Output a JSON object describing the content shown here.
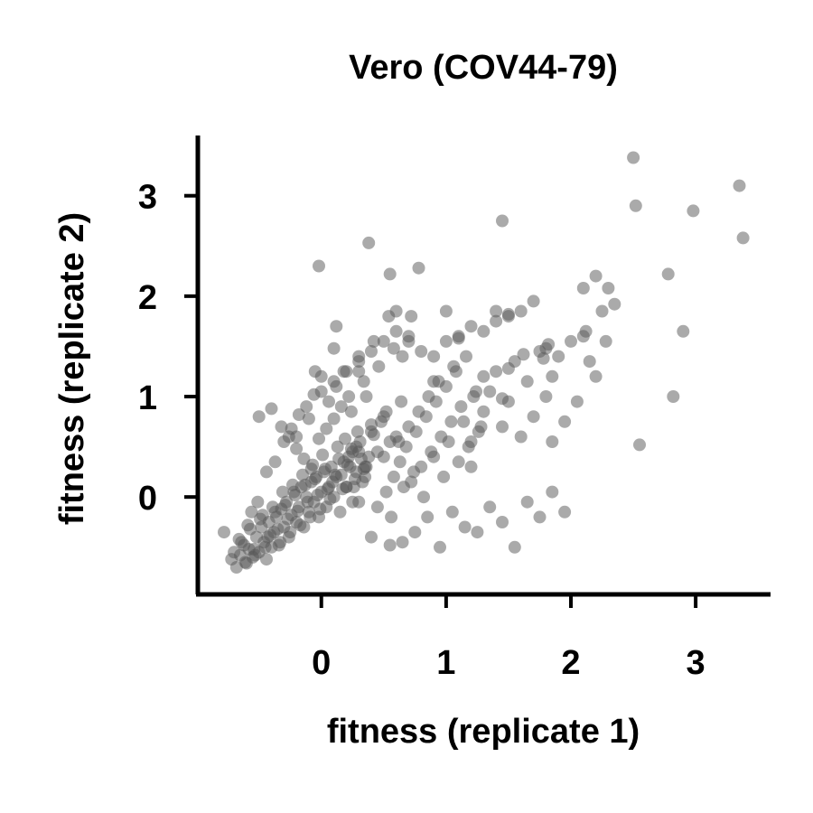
{
  "chart_data": {
    "type": "scatter",
    "title": "Vero (COV44-79)",
    "xlabel": "fitness (replicate 1)",
    "ylabel": "fitness (replicate 2)",
    "xlim": [
      -0.99,
      3.6
    ],
    "ylim": [
      -0.97,
      3.6
    ],
    "xticks": [
      0,
      1,
      2,
      3
    ],
    "yticks": [
      0,
      1,
      2,
      3
    ],
    "grid": false,
    "point_color": "#555555",
    "point_opacity": 0.5,
    "series": [
      {
        "x": [
          -0.78,
          -0.72,
          -0.68,
          -0.65,
          -0.62,
          -0.6,
          -0.58,
          -0.55,
          -0.52,
          -0.5,
          -0.48,
          -0.46,
          -0.44,
          -0.42,
          -0.4,
          -0.38,
          -0.36,
          -0.34,
          -0.32,
          -0.3,
          -0.28,
          -0.26,
          -0.24,
          -0.22,
          -0.2,
          -0.18,
          -0.16,
          -0.14,
          -0.12,
          -0.1,
          -0.08,
          -0.06,
          -0.04,
          -0.02,
          0.0,
          0.02,
          0.04,
          0.06,
          0.08,
          0.1,
          0.12,
          0.15,
          0.18,
          0.2,
          0.22,
          0.25,
          0.28,
          0.3,
          0.33,
          0.36,
          -0.7,
          -0.66,
          -0.61,
          -0.57,
          -0.53,
          -0.49,
          -0.45,
          -0.41,
          -0.37,
          -0.33,
          -0.29,
          -0.25,
          -0.21,
          -0.17,
          -0.13,
          -0.09,
          -0.05,
          -0.01,
          0.03,
          0.07,
          0.11,
          0.14,
          0.17,
          0.21,
          0.24,
          0.27,
          0.31,
          0.34,
          0.38,
          0.42,
          -0.64,
          -0.59,
          -0.54,
          -0.47,
          -0.43,
          -0.39,
          -0.35,
          -0.31,
          -0.27,
          -0.23,
          -0.19,
          -0.15,
          -0.11,
          -0.07,
          -0.03,
          0.01,
          0.05,
          0.09,
          0.13,
          0.16,
          0.19,
          0.23,
          0.26,
          0.29,
          0.32,
          0.35,
          0.4,
          0.45,
          0.5,
          0.55,
          -0.56,
          -0.51,
          -0.44,
          -0.37,
          -0.3,
          -0.24,
          -0.18,
          -0.12,
          -0.06,
          0.0,
          0.06,
          0.12,
          0.18,
          0.24,
          0.3,
          0.36,
          0.42,
          0.48,
          0.54,
          0.6,
          -0.5,
          -0.4,
          -0.32,
          -0.26,
          -0.2,
          -0.14,
          -0.08,
          -0.02,
          0.04,
          0.1,
          0.16,
          0.22,
          0.28,
          0.34,
          0.4,
          0.46,
          0.52,
          0.58,
          0.64,
          0.7,
          0.45,
          0.52,
          0.58,
          0.63,
          0.68,
          0.72,
          0.76,
          0.8,
          0.84,
          0.88,
          0.92,
          0.96,
          1.0,
          1.04,
          1.08,
          1.12,
          1.16,
          1.2,
          1.24,
          1.28,
          0.5,
          0.56,
          0.62,
          0.66,
          0.7,
          0.74,
          0.78,
          0.82,
          0.86,
          0.9,
          0.94,
          0.98,
          1.02,
          1.06,
          1.1,
          1.14,
          1.18,
          1.22,
          1.26,
          1.3,
          1.3,
          1.35,
          1.4,
          1.45,
          1.5,
          1.55,
          1.6,
          1.65,
          1.7,
          1.75,
          1.8,
          1.85,
          1.9,
          1.95,
          2.0,
          2.05,
          2.1,
          2.15,
          2.2,
          2.25,
          0.2,
          0.3,
          0.4,
          0.55,
          0.65,
          0.75,
          0.85,
          0.95,
          1.05,
          1.15,
          1.25,
          1.35,
          1.45,
          1.55,
          1.65,
          1.75,
          1.85,
          1.95,
          0.25,
          0.35,
          -0.2,
          -0.1,
          0.0,
          0.1,
          0.2,
          0.3,
          0.4,
          0.5,
          0.6,
          0.7,
          0.8,
          0.9,
          1.0,
          1.1,
          1.2,
          1.3,
          1.4,
          1.5,
          1.6,
          1.7,
          2.5,
          2.52,
          3.35,
          2.98,
          2.78,
          3.38,
          2.55,
          2.9,
          2.82,
          1.45,
          0.38,
          -0.02,
          0.78,
          0.55,
          2.2,
          2.3,
          2.35,
          2.1,
          2.12,
          1.78,
          1.62,
          1.82,
          2.28,
          1.85,
          0.6,
          0.72,
          1.0,
          1.4,
          1.5,
          0.1,
          -0.05,
          0.3,
          0.12,
          1.1,
          1.5,
          1.8,
          1.45,
          0.9,
          1.2,
          0.65
        ],
        "y": [
          -0.35,
          -0.62,
          -0.7,
          -0.58,
          -0.48,
          -0.66,
          -0.52,
          -0.6,
          -0.4,
          -0.55,
          -0.3,
          -0.45,
          -0.62,
          -0.25,
          -0.5,
          -0.35,
          -0.2,
          -0.48,
          -0.12,
          -0.3,
          -0.05,
          -0.4,
          -0.18,
          0.05,
          -0.25,
          -0.1,
          0.1,
          -0.3,
          0.0,
          -0.15,
          0.15,
          -0.05,
          0.2,
          -0.2,
          0.05,
          0.25,
          -0.1,
          0.1,
          0.3,
          0.0,
          0.2,
          -0.15,
          0.35,
          0.1,
          0.4,
          -0.05,
          0.25,
          0.45,
          0.15,
          0.3,
          -0.55,
          -0.42,
          -0.65,
          -0.32,
          -0.58,
          -0.22,
          -0.5,
          -0.38,
          -0.15,
          -0.45,
          -0.08,
          -0.35,
          0.02,
          -0.28,
          0.12,
          -0.2,
          0.18,
          -0.12,
          0.28,
          -0.02,
          0.22,
          0.38,
          0.08,
          0.32,
          0.48,
          0.18,
          0.55,
          0.28,
          0.4,
          0.62,
          -0.45,
          -0.28,
          -0.52,
          -0.18,
          -0.4,
          -0.1,
          -0.32,
          0.05,
          -0.22,
          0.12,
          -0.14,
          0.22,
          -0.05,
          0.32,
          0.02,
          0.42,
          0.08,
          0.15,
          0.5,
          0.22,
          0.58,
          0.3,
          0.1,
          0.65,
          0.38,
          0.2,
          0.72,
          0.45,
          0.8,
          0.55,
          -0.15,
          -0.05,
          0.25,
          0.35,
          0.55,
          0.68,
          0.82,
          0.9,
          1.02,
          1.2,
          0.95,
          1.1,
          1.25,
          0.85,
          1.4,
          1.0,
          1.55,
          0.75,
          1.8,
          0.6,
          0.8,
          0.88,
          0.7,
          0.6,
          0.48,
          0.38,
          0.28,
          0.58,
          0.68,
          0.78,
          0.9,
          1.0,
          0.5,
          1.15,
          0.65,
          1.3,
          0.85,
          1.48,
          0.95,
          1.6,
          -0.1,
          0.05,
          0.2,
          0.35,
          0.5,
          0.15,
          0.65,
          0.3,
          0.8,
          0.45,
          0.95,
          0.6,
          1.1,
          0.75,
          1.25,
          0.9,
          1.4,
          0.55,
          1.05,
          0.7,
          0.4,
          -0.2,
          0.55,
          0.1,
          0.7,
          0.25,
          0.85,
          0.0,
          1.0,
          0.4,
          1.15,
          0.2,
          0.55,
          1.3,
          0.35,
          0.75,
          0.5,
          1.0,
          0.65,
          1.2,
          0.85,
          1.05,
          1.25,
          0.7,
          0.95,
          1.35,
          0.6,
          1.15,
          0.8,
          1.45,
          1.0,
          1.2,
          1.4,
          0.75,
          1.55,
          0.95,
          1.6,
          1.35,
          1.2,
          1.85,
          0.1,
          -0.05,
          -0.4,
          -0.48,
          -0.45,
          -0.35,
          -0.2,
          -0.5,
          -0.15,
          -0.3,
          -0.35,
          -0.1,
          -0.25,
          -0.5,
          -0.05,
          -0.2,
          0.05,
          -0.15,
          0.45,
          0.3,
          0.6,
          0.78,
          1.05,
          1.15,
          1.25,
          1.35,
          1.45,
          1.55,
          1.65,
          1.55,
          1.45,
          1.4,
          1.55,
          1.6,
          1.7,
          1.65,
          1.75,
          1.8,
          1.85,
          1.95,
          3.38,
          2.9,
          3.1,
          2.85,
          2.22,
          2.58,
          0.52,
          1.65,
          1.0,
          2.75,
          2.53,
          2.3,
          2.28,
          2.22,
          2.2,
          2.08,
          1.92,
          2.08,
          1.65,
          1.38,
          1.42,
          1.52,
          1.55,
          0.55,
          1.85,
          1.8,
          1.85,
          1.85,
          1.82,
          1.48,
          1.25,
          1.25,
          1.7,
          1.58,
          1.28,
          1.48,
          0.98,
          1.15,
          0.3,
          1.4
        ]
      }
    ]
  }
}
